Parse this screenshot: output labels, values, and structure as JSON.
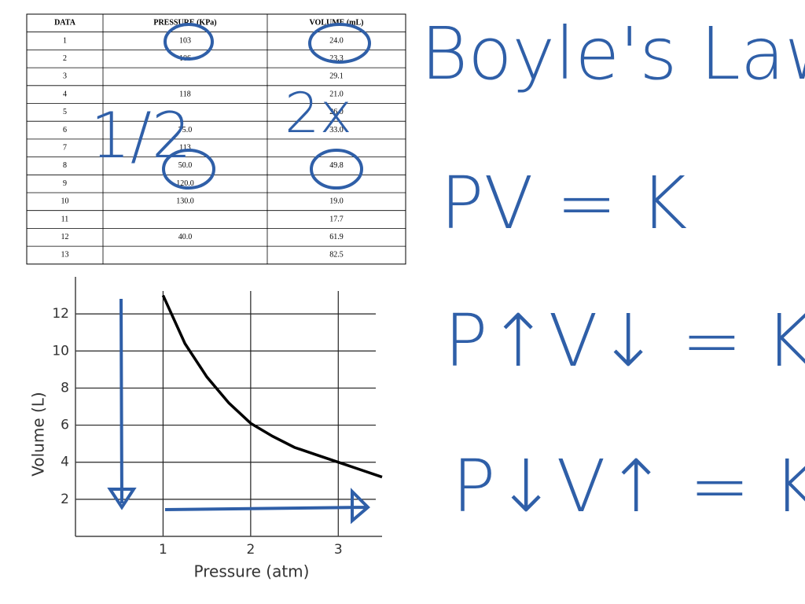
{
  "table": {
    "headers": [
      "DATA",
      "PRESSURE (KPa)",
      "VOLUME (mL)"
    ],
    "rows": [
      [
        "1",
        "103",
        "24.0"
      ],
      [
        "2",
        "106",
        "23.3"
      ],
      [
        "3",
        "",
        "29.1"
      ],
      [
        "4",
        "118",
        "21.0"
      ],
      [
        "5",
        "",
        "26.0"
      ],
      [
        "6",
        "75.0",
        "33.0"
      ],
      [
        "7",
        "113",
        ""
      ],
      [
        "8",
        "50.0",
        "49.8"
      ],
      [
        "9",
        "120.0",
        ""
      ],
      [
        "10",
        "130.0",
        "19.0"
      ],
      [
        "11",
        "",
        "17.7"
      ],
      [
        "12",
        "40.0",
        "61.9"
      ],
      [
        "13",
        "",
        "82.5"
      ]
    ]
  },
  "chart_data": {
    "type": "line",
    "x_label": "Pressure (atm)",
    "y_label": "Volume  (L)",
    "x": [
      1,
      1.25,
      1.5,
      1.75,
      2,
      2.25,
      2.5,
      2.75,
      3,
      3.25,
      3.5
    ],
    "series": [
      {
        "name": "Volume",
        "color": "#000000",
        "values": [
          13,
          10.4,
          8.6,
          7.2,
          6.1,
          5.4,
          4.8,
          4.4,
          4.0,
          3.6,
          3.2
        ]
      }
    ],
    "xlim": [
      0,
      3.5
    ],
    "ylim": [
      0,
      14
    ],
    "xticks": [
      1,
      2,
      3
    ],
    "yticks": [
      2,
      4,
      6,
      8,
      10,
      12
    ],
    "grid": true
  },
  "annotations": {
    "title": "Boyle's Law",
    "eq1": "PV = K",
    "eq2": "P↑V↓ = K",
    "eq3": "P↓V↑ = K",
    "half": "1/2",
    "double": "2x"
  }
}
